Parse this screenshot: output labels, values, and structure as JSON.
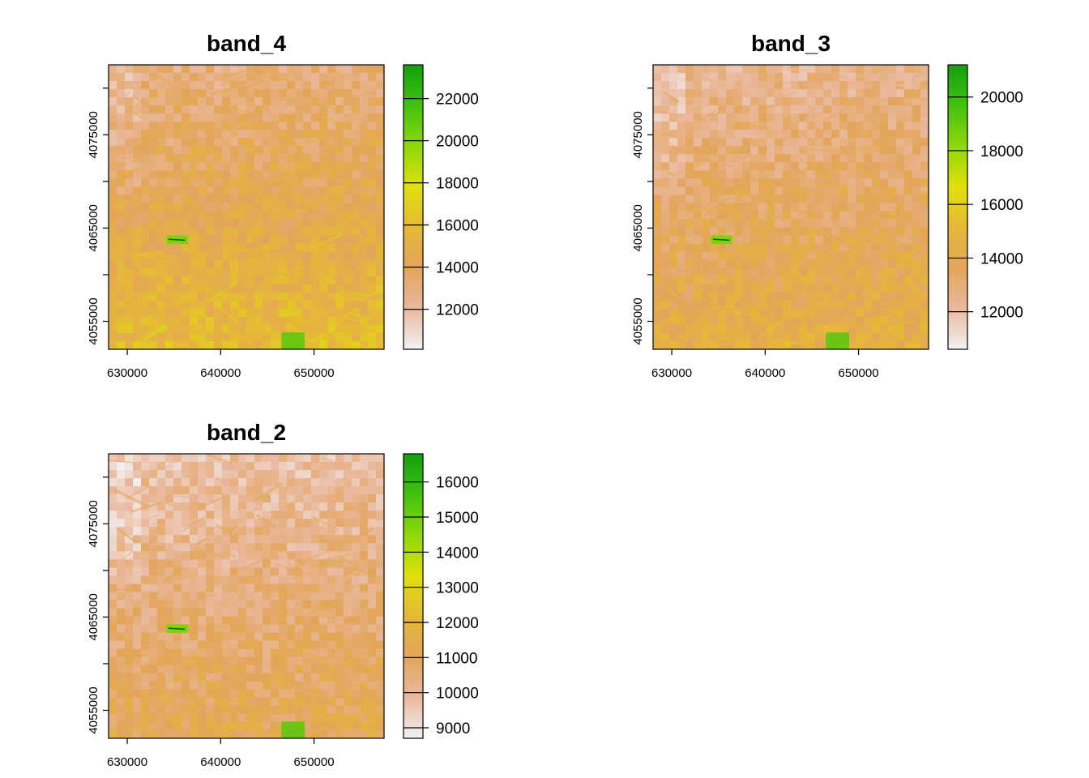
{
  "chart_data": [
    {
      "type": "heatmap",
      "title": "band_4",
      "xlabel": "",
      "ylabel": "",
      "xlim": [
        628000,
        657500
      ],
      "ylim": [
        4052000,
        4082500
      ],
      "x_ticks": [
        630000,
        640000,
        650000
      ],
      "x_tick_labels": [
        "630000",
        "640000",
        "650000"
      ],
      "y_ticks": [
        4055000,
        4065000,
        4075000
      ],
      "y_tick_labels": [
        "4055000",
        "4065000",
        "4075000"
      ],
      "y_minor_ticks": [
        4060000,
        4070000,
        4080000
      ],
      "legend": {
        "placement": "right",
        "range": [
          10100,
          23600
        ],
        "ticks": [
          12000,
          14000,
          16000,
          18000,
          20000,
          22000
        ],
        "tick_labels": [
          "12000",
          "14000",
          "16000",
          "18000",
          "20000",
          "22000"
        ],
        "colors": [
          "#f2f2f2",
          "#eab99e",
          "#e3a55a",
          "#e6b838",
          "#dfe00c",
          "#8fd80b",
          "#43c20e",
          "#12a012"
        ]
      },
      "raster_description_levels": {
        "north": 13000,
        "south": 16000
      }
    },
    {
      "type": "heatmap",
      "title": "band_3",
      "xlabel": "",
      "ylabel": "",
      "xlim": [
        628000,
        657500
      ],
      "ylim": [
        4052000,
        4082500
      ],
      "x_ticks": [
        630000,
        640000,
        650000
      ],
      "x_tick_labels": [
        "630000",
        "640000",
        "650000"
      ],
      "y_ticks": [
        4055000,
        4065000,
        4075000
      ],
      "y_tick_labels": [
        "4055000",
        "4065000",
        "4075000"
      ],
      "y_minor_ticks": [
        4060000,
        4070000,
        4080000
      ],
      "legend": {
        "placement": "right",
        "range": [
          10600,
          21200
        ],
        "ticks": [
          12000,
          14000,
          16000,
          18000,
          20000
        ],
        "tick_labels": [
          "12000",
          "14000",
          "16000",
          "18000",
          "20000"
        ],
        "colors": [
          "#f2f2f2",
          "#eab99e",
          "#e3a55a",
          "#e6b838",
          "#dfe00c",
          "#8fd80b",
          "#43c20e",
          "#12a012"
        ]
      },
      "raster_description_levels": {
        "north": 12500,
        "south": 14500
      }
    },
    {
      "type": "heatmap",
      "title": "band_2",
      "xlabel": "",
      "ylabel": "",
      "xlim": [
        628000,
        657500
      ],
      "ylim": [
        4052000,
        4082500
      ],
      "x_ticks": [
        630000,
        640000,
        650000
      ],
      "x_tick_labels": [
        "630000",
        "640000",
        "650000"
      ],
      "y_ticks": [
        4055000,
        4065000,
        4075000
      ],
      "y_tick_labels": [
        "4055000",
        "4065000",
        "4075000"
      ],
      "y_minor_ticks": [
        4060000,
        4070000,
        4080000
      ],
      "legend": {
        "placement": "right",
        "range": [
          8700,
          16800
        ],
        "ticks": [
          9000,
          10000,
          11000,
          12000,
          13000,
          14000,
          15000,
          16000
        ],
        "tick_labels": [
          "9000",
          "10000",
          "11000",
          "12000",
          "13000",
          "14000",
          "15000",
          "16000"
        ],
        "colors": [
          "#f2f2f2",
          "#eab99e",
          "#e3a55a",
          "#e6b838",
          "#dfe00c",
          "#8fd80b",
          "#43c20e",
          "#12a012"
        ]
      },
      "raster_description_levels": {
        "north": 9800,
        "south": 11200
      }
    }
  ]
}
